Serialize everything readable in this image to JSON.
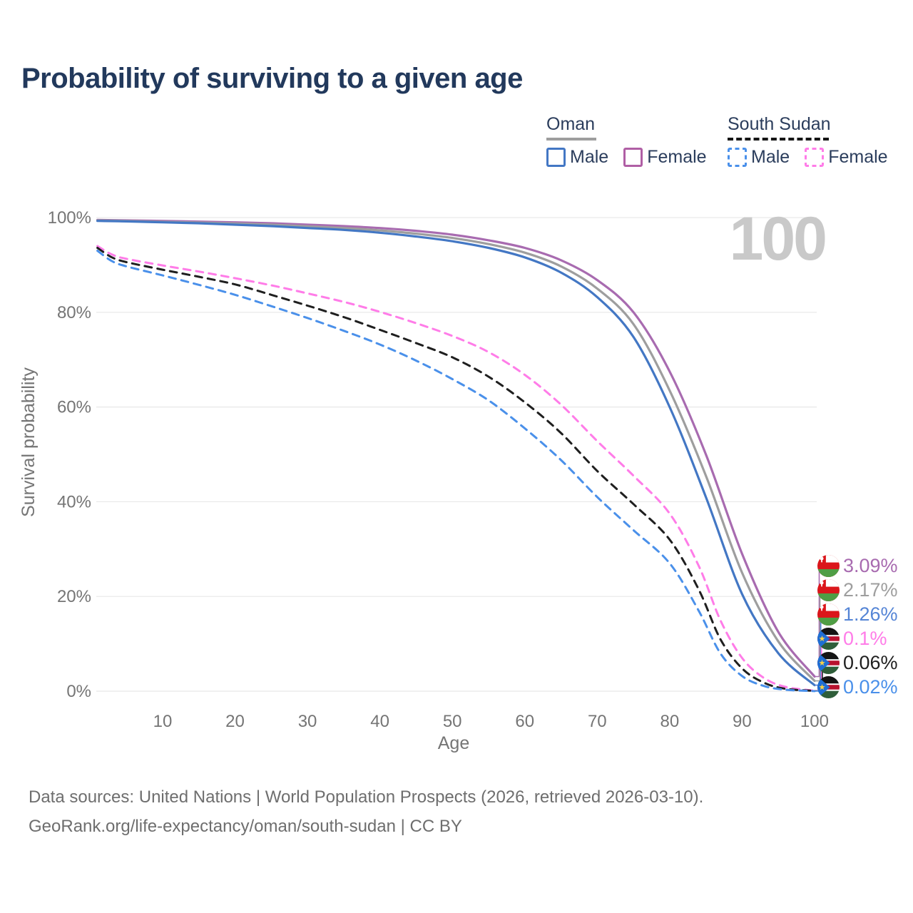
{
  "title": "Probability of surviving to a given age",
  "watermark": "100",
  "legend": {
    "groups": [
      {
        "name": "Oman",
        "line_style": "solid",
        "underline_color": "#9e9e9e",
        "entries": [
          {
            "label": "Male",
            "color": "#4377c4"
          },
          {
            "label": "Female",
            "color": "#b05fa5"
          }
        ]
      },
      {
        "name": "South Sudan",
        "line_style": "dashed",
        "underline_color": "#151515",
        "entries": [
          {
            "label": "Male",
            "color": "#4a90ea"
          },
          {
            "label": "Female",
            "color": "#ff7ce8"
          }
        ]
      }
    ]
  },
  "chart_data": {
    "type": "line",
    "title": "Probability of surviving to a given age",
    "xlabel": "Age",
    "ylabel": "Survival probability",
    "xlim": [
      1,
      100
    ],
    "ylim": [
      0,
      100
    ],
    "grid": "horizontal",
    "legend_position": "top-right",
    "xticks": [
      10,
      20,
      30,
      40,
      50,
      60,
      70,
      80,
      90,
      100
    ],
    "yticks": [
      {
        "value": 0,
        "label": "0%"
      },
      {
        "value": 20,
        "label": "20%"
      },
      {
        "value": 40,
        "label": "40%"
      },
      {
        "value": 60,
        "label": "60%"
      },
      {
        "value": 80,
        "label": "80%"
      },
      {
        "value": 100,
        "label": "100%"
      }
    ],
    "series": [
      {
        "name": "oman-female",
        "country": "Oman",
        "group": "Female",
        "color": "#a86bb0",
        "dashed": false,
        "points": [
          [
            1,
            99.5
          ],
          [
            5,
            99.4
          ],
          [
            10,
            99.3
          ],
          [
            15,
            99.15
          ],
          [
            20,
            99.0
          ],
          [
            25,
            98.8
          ],
          [
            30,
            98.5
          ],
          [
            35,
            98.2
          ],
          [
            40,
            97.8
          ],
          [
            45,
            97.2
          ],
          [
            50,
            96.4
          ],
          [
            55,
            95.2
          ],
          [
            60,
            93.6
          ],
          [
            65,
            91.0
          ],
          [
            70,
            86.8
          ],
          [
            75,
            80.0
          ],
          [
            80,
            67.5
          ],
          [
            85,
            50.0
          ],
          [
            90,
            29.0
          ],
          [
            95,
            12.5
          ],
          [
            100,
            3.09
          ]
        ]
      },
      {
        "name": "oman-both-sexes",
        "country": "Oman",
        "group": "All",
        "color": "#9e9e9e",
        "dashed": false,
        "points": [
          [
            1,
            99.4
          ],
          [
            5,
            99.3
          ],
          [
            10,
            99.1
          ],
          [
            15,
            98.95
          ],
          [
            20,
            98.75
          ],
          [
            25,
            98.5
          ],
          [
            30,
            98.15
          ],
          [
            35,
            97.8
          ],
          [
            40,
            97.3
          ],
          [
            45,
            96.6
          ],
          [
            50,
            95.7
          ],
          [
            55,
            94.4
          ],
          [
            60,
            92.6
          ],
          [
            65,
            89.7
          ],
          [
            70,
            85.0
          ],
          [
            75,
            77.5
          ],
          [
            80,
            63.5
          ],
          [
            85,
            45.5
          ],
          [
            90,
            25.0
          ],
          [
            95,
            10.5
          ],
          [
            100,
            2.17
          ]
        ]
      },
      {
        "name": "oman-male",
        "country": "Oman",
        "group": "Male",
        "color": "#4377c4",
        "dashed": false,
        "points": [
          [
            1,
            99.3
          ],
          [
            5,
            99.2
          ],
          [
            10,
            99.0
          ],
          [
            15,
            98.8
          ],
          [
            20,
            98.5
          ],
          [
            25,
            98.2
          ],
          [
            30,
            97.8
          ],
          [
            35,
            97.4
          ],
          [
            40,
            96.8
          ],
          [
            45,
            96.0
          ],
          [
            50,
            95.0
          ],
          [
            55,
            93.6
          ],
          [
            60,
            91.6
          ],
          [
            65,
            88.4
          ],
          [
            70,
            83.2
          ],
          [
            75,
            74.8
          ],
          [
            80,
            60.0
          ],
          [
            85,
            41.0
          ],
          [
            90,
            20.5
          ],
          [
            95,
            8.0
          ],
          [
            100,
            1.26
          ]
        ]
      },
      {
        "name": "south-sudan-female",
        "country": "South Sudan",
        "group": "Female",
        "color": "#ff7ce8",
        "dashed": true,
        "points": [
          [
            1,
            94.0
          ],
          [
            3,
            92.2
          ],
          [
            5,
            91.3
          ],
          [
            10,
            89.9
          ],
          [
            15,
            88.6
          ],
          [
            20,
            87.2
          ],
          [
            25,
            85.7
          ],
          [
            30,
            84.0
          ],
          [
            35,
            82.2
          ],
          [
            40,
            80.1
          ],
          [
            45,
            77.7
          ],
          [
            50,
            75.0
          ],
          [
            55,
            71.6
          ],
          [
            60,
            66.8
          ],
          [
            65,
            60.5
          ],
          [
            70,
            52.8
          ],
          [
            75,
            45.5
          ],
          [
            80,
            37.5
          ],
          [
            84,
            26.5
          ],
          [
            87,
            15.0
          ],
          [
            90,
            7.0
          ],
          [
            93,
            2.8
          ],
          [
            96,
            0.9
          ],
          [
            100,
            0.1
          ]
        ]
      },
      {
        "name": "south-sudan-both-sexes",
        "country": "South Sudan",
        "group": "All",
        "color": "#1f1f1f",
        "dashed": true,
        "points": [
          [
            1,
            93.6
          ],
          [
            3,
            91.6
          ],
          [
            5,
            90.6
          ],
          [
            10,
            89.0
          ],
          [
            15,
            87.5
          ],
          [
            20,
            85.9
          ],
          [
            25,
            83.7
          ],
          [
            30,
            81.4
          ],
          [
            35,
            79.0
          ],
          [
            40,
            76.3
          ],
          [
            45,
            73.5
          ],
          [
            50,
            70.5
          ],
          [
            55,
            66.4
          ],
          [
            60,
            61.0
          ],
          [
            65,
            54.5
          ],
          [
            70,
            46.5
          ],
          [
            75,
            39.5
          ],
          [
            80,
            32.0
          ],
          [
            84,
            21.5
          ],
          [
            87,
            11.0
          ],
          [
            90,
            4.8
          ],
          [
            93,
            1.8
          ],
          [
            96,
            0.5
          ],
          [
            100,
            0.06
          ]
        ]
      },
      {
        "name": "south-sudan-male",
        "country": "South Sudan",
        "group": "Male",
        "color": "#4a90ea",
        "dashed": true,
        "points": [
          [
            1,
            93.0
          ],
          [
            3,
            90.8
          ],
          [
            5,
            89.7
          ],
          [
            10,
            87.8
          ],
          [
            15,
            85.8
          ],
          [
            20,
            83.7
          ],
          [
            25,
            81.3
          ],
          [
            30,
            78.8
          ],
          [
            35,
            76.1
          ],
          [
            40,
            73.2
          ],
          [
            45,
            69.8
          ],
          [
            50,
            65.9
          ],
          [
            55,
            61.4
          ],
          [
            60,
            55.5
          ],
          [
            65,
            48.8
          ],
          [
            70,
            41.0
          ],
          [
            75,
            34.0
          ],
          [
            80,
            27.0
          ],
          [
            84,
            17.0
          ],
          [
            87,
            8.0
          ],
          [
            90,
            3.2
          ],
          [
            93,
            1.1
          ],
          [
            96,
            0.3
          ],
          [
            100,
            0.02
          ]
        ]
      }
    ],
    "end_labels": [
      {
        "value": "3.09%",
        "color": "#a86bb0",
        "flag": "oman"
      },
      {
        "value": "2.17%",
        "color": "#9e9e9e",
        "flag": "oman"
      },
      {
        "value": "1.26%",
        "color": "#5585d6",
        "flag": "oman"
      },
      {
        "value": "0.1%",
        "color": "#ff7ce8",
        "flag": "south-sudan"
      },
      {
        "value": "0.06%",
        "color": "#1f1f1f",
        "flag": "south-sudan"
      },
      {
        "value": "0.02%",
        "color": "#4a90ea",
        "flag": "south-sudan"
      }
    ]
  },
  "source": {
    "line1": "Data sources: United Nations | World Population Prospects (2026, retrieved 2026-03-10).",
    "line2": "GeoRank.org/life-expectancy/oman/south-sudan | CC BY"
  }
}
